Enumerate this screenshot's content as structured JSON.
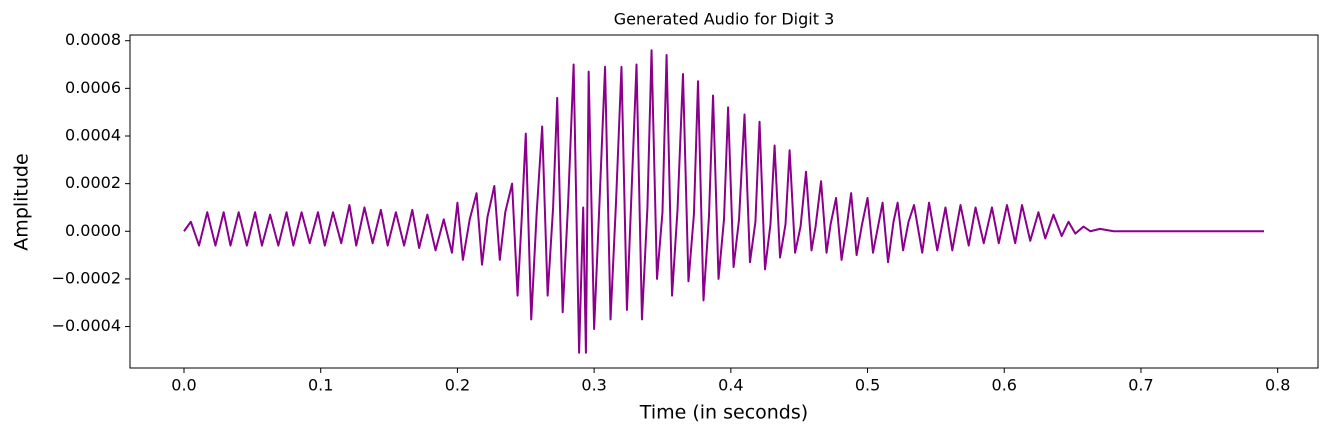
{
  "chart_data": {
    "type": "line",
    "title": "Generated Audio for Digit 3",
    "x_label": "Time (in seconds)",
    "y_label": "Amplitude",
    "color": "#8b008b",
    "xlim": [
      -0.0395,
      0.8295
    ],
    "ylim": [
      -0.000574,
      0.000824
    ],
    "xticks": [
      {
        "value": 0,
        "label": "0.0"
      },
      0.1,
      0.2,
      0.3,
      0.4,
      0.5,
      0.6,
      0.7,
      0.8
    ],
    "yticks": [
      {
        "value": -0.0004,
        "label": "−0.0004"
      },
      {
        "value": -0.0002,
        "label": "−0.0002"
      },
      {
        "value": 0,
        "label": "0.0000"
      },
      {
        "value": 0.0002,
        "label": "0.0002"
      },
      {
        "value": 0.0004,
        "label": "0.0004"
      },
      {
        "value": 0.0006,
        "label": "0.0006"
      },
      {
        "value": 0.0008,
        "label": "0.0008"
      }
    ],
    "x": [
      0,
      0.005,
      0.011,
      0.017,
      0.023,
      0.029,
      0.034,
      0.04,
      0.046,
      0.052,
      0.057,
      0.063,
      0.069,
      0.075,
      0.08,
      0.086,
      0.092,
      0.098,
      0.103,
      0.109,
      0.115,
      0.121,
      0.126,
      0.132,
      0.138,
      0.144,
      0.149,
      0.155,
      0.161,
      0.167,
      0.172,
      0.178,
      0.184,
      0.19,
      0.196,
      0.2,
      0.204,
      0.209,
      0.214,
      0.218,
      0.222,
      0.227,
      0.231,
      0.235,
      0.24,
      0.244,
      0.247,
      0.25,
      0.254,
      0.258,
      0.262,
      0.266,
      0.27,
      0.273,
      0.277,
      0.281,
      0.285,
      0.289,
      0.292,
      0.294,
      0.296,
      0.3,
      0.304,
      0.308,
      0.312,
      0.316,
      0.32,
      0.324,
      0.327,
      0.331,
      0.335,
      0.339,
      0.342,
      0.346,
      0.35,
      0.353,
      0.357,
      0.361,
      0.365,
      0.369,
      0.373,
      0.376,
      0.38,
      0.384,
      0.387,
      0.391,
      0.395,
      0.398,
      0.402,
      0.406,
      0.41,
      0.414,
      0.418,
      0.421,
      0.425,
      0.429,
      0.432,
      0.436,
      0.44,
      0.443,
      0.447,
      0.451,
      0.455,
      0.459,
      0.462,
      0.466,
      0.47,
      0.473,
      0.477,
      0.481,
      0.485,
      0.488,
      0.492,
      0.496,
      0.5,
      0.504,
      0.508,
      0.511,
      0.515,
      0.519,
      0.522,
      0.526,
      0.53,
      0.534,
      0.54,
      0.545,
      0.551,
      0.557,
      0.562,
      0.568,
      0.574,
      0.579,
      0.585,
      0.591,
      0.596,
      0.602,
      0.608,
      0.613,
      0.619,
      0.625,
      0.63,
      0.636,
      0.642,
      0.647,
      0.652,
      0.658,
      0.663,
      0.67,
      0.68,
      0.79
    ],
    "values": [
      0,
      4e-05,
      -6e-05,
      8e-05,
      -6e-05,
      8e-05,
      -6e-05,
      8e-05,
      -6e-05,
      8e-05,
      -6e-05,
      7e-05,
      -6e-05,
      8e-05,
      -6e-05,
      8e-05,
      -5e-05,
      8e-05,
      -6e-05,
      8e-05,
      -5e-05,
      0.00011,
      -6e-05,
      0.0001,
      -5e-05,
      9e-05,
      -6e-05,
      8e-05,
      -6e-05,
      9e-05,
      -7e-05,
      7e-05,
      -8e-05,
      5e-05,
      -9e-05,
      0.00012,
      -0.00012,
      5e-05,
      0.00016,
      -0.00014,
      6e-05,
      0.00019,
      -0.00012,
      8e-05,
      0.0002,
      -0.00027,
      5e-05,
      0.00041,
      -0.00037,
      8e-05,
      0.00044,
      -0.00027,
      0.0001,
      0.00056,
      -0.00034,
      0.00012,
      0.0007,
      -0.00051,
      0.0001,
      -0.00051,
      0.00067,
      -0.00041,
      0.00013,
      0.00069,
      -0.00037,
      0.00012,
      0.00069,
      -0.00033,
      0.00011,
      0.0007,
      -0.00037,
      0.0001,
      0.00076,
      -0.0002,
      8e-05,
      0.00074,
      -0.00027,
      9e-05,
      0.00066,
      -0.00021,
      7e-05,
      0.00063,
      -0.00029,
      6e-05,
      0.00057,
      -0.0002,
      5e-05,
      0.00052,
      -0.00015,
      5e-05,
      0.00049,
      -0.00013,
      4e-05,
      0.00046,
      -0.00016,
      3e-05,
      0.00036,
      -0.00011,
      3e-05,
      0.00034,
      -9e-05,
      2e-05,
      0.00025,
      -8e-05,
      2e-05,
      0.00021,
      -9e-05,
      3e-05,
      0.00014,
      -0.00012,
      3e-05,
      0.00016,
      -0.0001,
      3e-05,
      0.00014,
      -9e-05,
      3e-05,
      0.00012,
      -0.00013,
      4e-05,
      0.00012,
      -8e-05,
      4e-05,
      0.00011,
      -9e-05,
      0.00012,
      -8e-05,
      0.0001,
      -8e-05,
      0.00011,
      -6e-05,
      0.0001,
      -5e-05,
      0.0001,
      -5e-05,
      0.00011,
      -5e-05,
      0.00011,
      -4e-05,
      8e-05,
      -3e-05,
      7e-05,
      -2e-05,
      4e-05,
      -1e-05,
      2e-05,
      0,
      1e-05,
      0,
      0
    ]
  }
}
